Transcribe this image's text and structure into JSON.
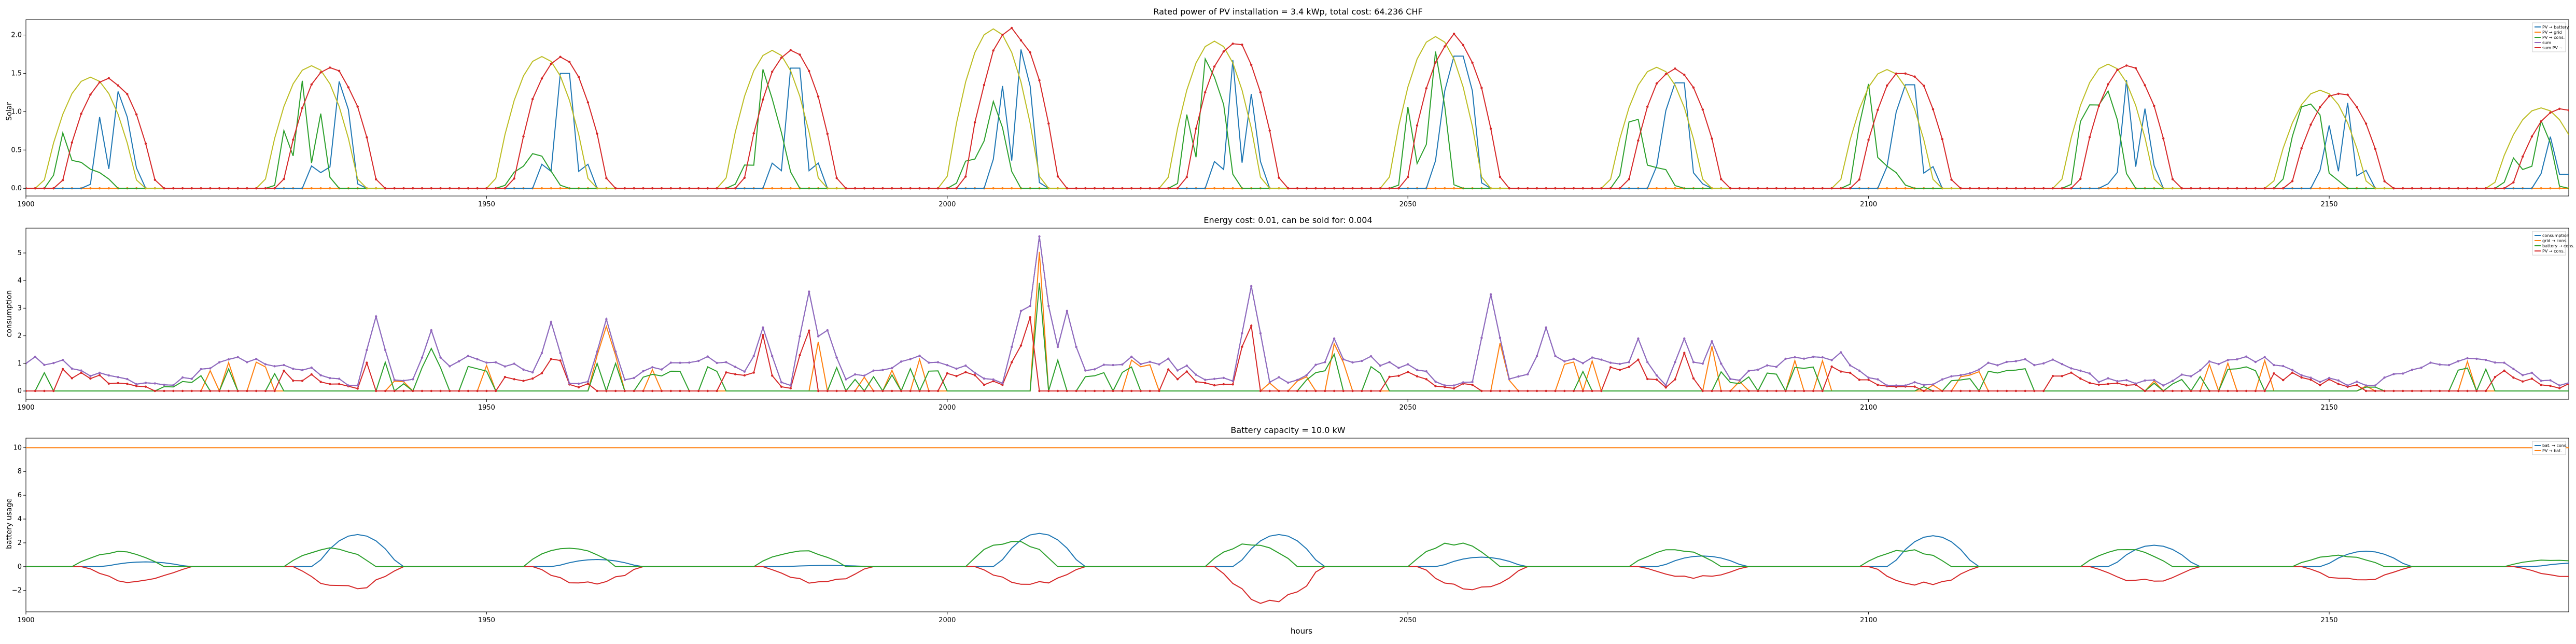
{
  "figure": {
    "xlabel": "hours"
  },
  "chart_data": [
    {
      "type": "line",
      "title": "Rated power of PV installation = 3.4 kWp, total cost: 64.236 CHF",
      "xlabel": "",
      "ylabel": "Solar",
      "xlim": [
        1900,
        2176
      ],
      "ylim": [
        -0.1,
        2.2
      ],
      "x_ticks": [
        1900,
        1950,
        2000,
        2050,
        2100,
        2150
      ],
      "y_ticks": [
        0.0,
        0.5,
        1.0,
        1.5,
        2.0
      ],
      "y_tick_labels": [
        "0.0",
        "0.5",
        "1.0",
        "1.5",
        "2.0"
      ],
      "legend": [
        "PV → battery",
        "PV → grid",
        "PV → cons.",
        "sum",
        "sum PV ~"
      ],
      "legend_position": "upper-right",
      "grid": false,
      "days": [
        {
          "center": 1908,
          "peak": 1.45
        },
        {
          "center": 1932,
          "peak": 1.6
        },
        {
          "center": 1957,
          "peak": 1.72
        },
        {
          "center": 1982,
          "peak": 1.8
        },
        {
          "center": 2006,
          "peak": 2.08
        },
        {
          "center": 2030,
          "peak": 1.92
        },
        {
          "center": 2054,
          "peak": 1.98
        },
        {
          "center": 2078,
          "peak": 1.58
        },
        {
          "center": 2103,
          "peak": 1.55
        },
        {
          "center": 2127,
          "peak": 1.62
        },
        {
          "center": 2150,
          "peak": 1.28
        },
        {
          "center": 2174,
          "peak": 1.05
        }
      ],
      "series_colors": [
        "#1f77b4",
        "#ff7f0e",
        "#2ca02c",
        "#9467bd",
        "#d62728"
      ]
    },
    {
      "type": "line",
      "title": "Energy cost: 0.01, can be sold for: 0.004",
      "xlabel": "",
      "ylabel": "consumption",
      "xlim": [
        1900,
        2176
      ],
      "ylim": [
        -0.3,
        5.9
      ],
      "x_ticks": [
        1900,
        1950,
        2000,
        2050,
        2100,
        2150
      ],
      "y_ticks": [
        0,
        1,
        2,
        3,
        4,
        5
      ],
      "y_tick_labels": [
        "0",
        "1",
        "2",
        "3",
        "4",
        "5"
      ],
      "legend": [
        "consumption",
        "grid → cons.",
        "battery → cons.",
        "PV → cons."
      ],
      "legend_position": "upper-right",
      "grid": false,
      "spikes": [
        {
          "x": 1938,
          "y": 2.7
        },
        {
          "x": 1944,
          "y": 2.2
        },
        {
          "x": 1957,
          "y": 2.5
        },
        {
          "x": 1963,
          "y": 2.6
        },
        {
          "x": 1980,
          "y": 2.3
        },
        {
          "x": 1985,
          "y": 3.6
        },
        {
          "x": 1987,
          "y": 2.2
        },
        {
          "x": 2008,
          "y": 2.9
        },
        {
          "x": 2010,
          "y": 5.6
        },
        {
          "x": 2013,
          "y": 2.9
        },
        {
          "x": 2033,
          "y": 3.8
        },
        {
          "x": 2042,
          "y": 1.9
        },
        {
          "x": 2059,
          "y": 3.5
        },
        {
          "x": 2065,
          "y": 2.3
        },
        {
          "x": 2075,
          "y": 1.9
        },
        {
          "x": 2080,
          "y": 1.9
        },
        {
          "x": 2083,
          "y": 1.8
        },
        {
          "x": 2097,
          "y": 1.4
        }
      ],
      "series_colors": [
        "#1f77b4",
        "#ff7f0e",
        "#2ca02c",
        "#d62728",
        "#9467bd"
      ]
    },
    {
      "type": "line",
      "title": "Battery capacity = 10.0 kW",
      "xlabel": "hours",
      "ylabel": "battery usage",
      "xlim": [
        1900,
        2176
      ],
      "ylim": [
        -3.8,
        10.8
      ],
      "x_ticks": [
        1900,
        1950,
        2000,
        2050,
        2100,
        2150
      ],
      "y_ticks": [
        -2,
        0,
        2,
        4,
        6,
        8,
        10
      ],
      "y_tick_labels": [
        "−2",
        "0",
        "2",
        "4",
        "6",
        "8",
        "10"
      ],
      "legend": [
        "bat. → cons.",
        "PV → bat."
      ],
      "legend_position": "upper-right",
      "grid": false,
      "capacity": 10.0,
      "days": [
        {
          "center": 1910,
          "peak": 1.3,
          "blue": 0.4,
          "drop": -1.4
        },
        {
          "center": 1933,
          "peak": 1.6,
          "blue": 2.7,
          "drop": -2.1
        },
        {
          "center": 1959,
          "peak": 1.8,
          "blue": 0.6,
          "drop": -1.6
        },
        {
          "center": 1984,
          "peak": 1.4,
          "blue": 0.1,
          "drop": -1.5
        },
        {
          "center": 2007,
          "peak": 2.3,
          "blue": 2.8,
          "drop": -1.6
        },
        {
          "center": 2033,
          "peak": 2.0,
          "blue": 2.7,
          "drop": -3.5
        },
        {
          "center": 2055,
          "peak": 2.1,
          "blue": 0.8,
          "drop": -2.1
        },
        {
          "center": 2079,
          "peak": 1.5,
          "blue": 0.9,
          "drop": -1.0
        },
        {
          "center": 2104,
          "peak": 1.5,
          "blue": 2.6,
          "drop": -1.7
        },
        {
          "center": 2128,
          "peak": 1.5,
          "blue": 1.8,
          "drop": -1.4
        },
        {
          "center": 2151,
          "peak": 1.0,
          "blue": 1.3,
          "drop": -1.3
        },
        {
          "center": 2174,
          "peak": 0.6,
          "blue": 0.3,
          "drop": -0.9
        }
      ],
      "series_colors": [
        "#1f77b4",
        "#ff7f0e",
        "#d62728",
        "#2ca02c"
      ]
    }
  ]
}
